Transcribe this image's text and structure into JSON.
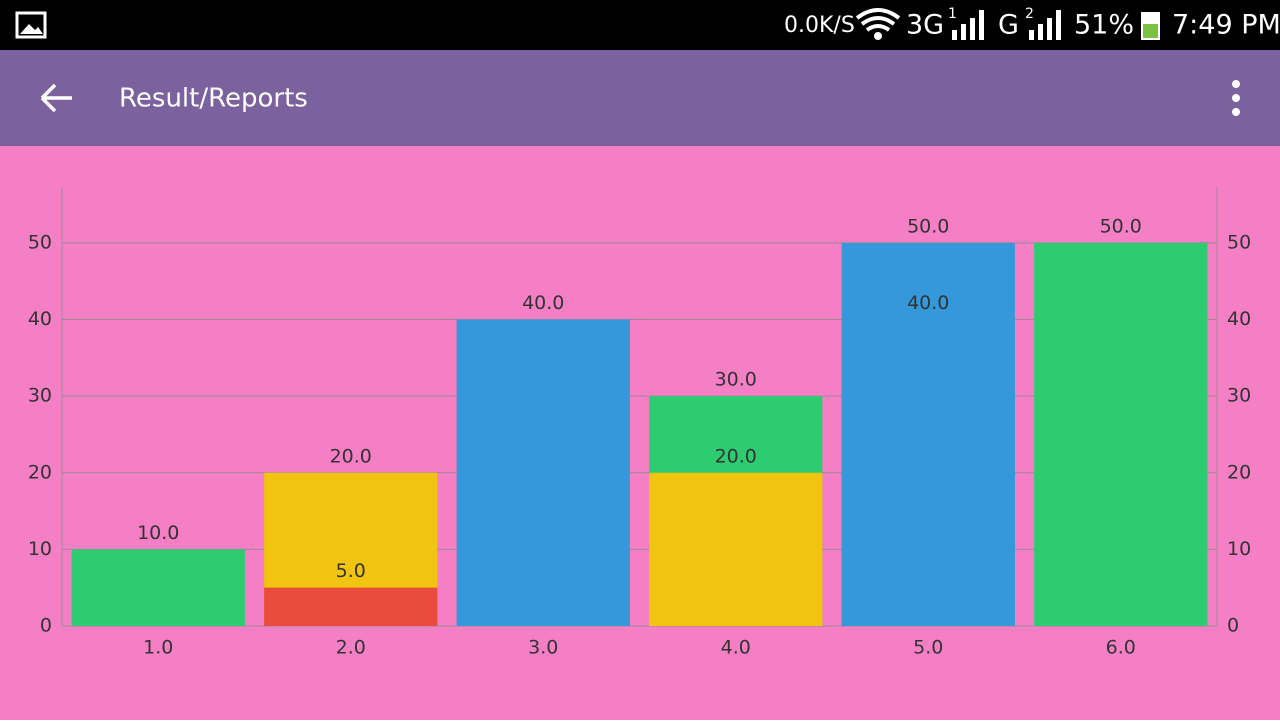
{
  "status_bar": {
    "speed": "0.0K/S",
    "net1": "3G",
    "sim1": "1",
    "net2": "G",
    "sim2": "2",
    "battery": "51%",
    "time": "7:49 PM"
  },
  "app_bar": {
    "title": "Result/Reports"
  },
  "chart_data": {
    "type": "bar",
    "categories": [
      "1.0",
      "2.0",
      "3.0",
      "4.0",
      "5.0",
      "6.0"
    ],
    "series": [
      {
        "color": "#2ecc71",
        "values": [
          10,
          null,
          null,
          30,
          null,
          50
        ],
        "value_labels": [
          "10.0",
          null,
          null,
          "30.0",
          null,
          "50.0"
        ]
      },
      {
        "color": "#f1c40f",
        "values": [
          null,
          20,
          null,
          20,
          null,
          null
        ],
        "value_labels": [
          null,
          "20.0",
          null,
          "20.0",
          null,
          null
        ]
      },
      {
        "color": "#e74c3c",
        "values": [
          null,
          5,
          null,
          null,
          null,
          null
        ],
        "value_labels": [
          null,
          "5.0",
          null,
          null,
          null,
          null
        ]
      },
      {
        "color": "#3498db",
        "values": [
          null,
          null,
          40,
          null,
          50,
          null
        ],
        "value_labels": [
          null,
          null,
          "40.0",
          null,
          "50.0",
          null
        ]
      },
      {
        "color": "#3498db",
        "values": [
          null,
          null,
          null,
          null,
          40,
          null
        ],
        "value_labels": [
          null,
          null,
          null,
          null,
          "40.0",
          null
        ]
      }
    ],
    "ylim": [
      0,
      57.3
    ],
    "yticks": [
      0,
      10,
      20,
      30,
      40,
      50
    ],
    "y2lim": [
      0,
      57.3
    ],
    "y2ticks": [
      0,
      10,
      20,
      30,
      40,
      50
    ],
    "grid": true
  }
}
